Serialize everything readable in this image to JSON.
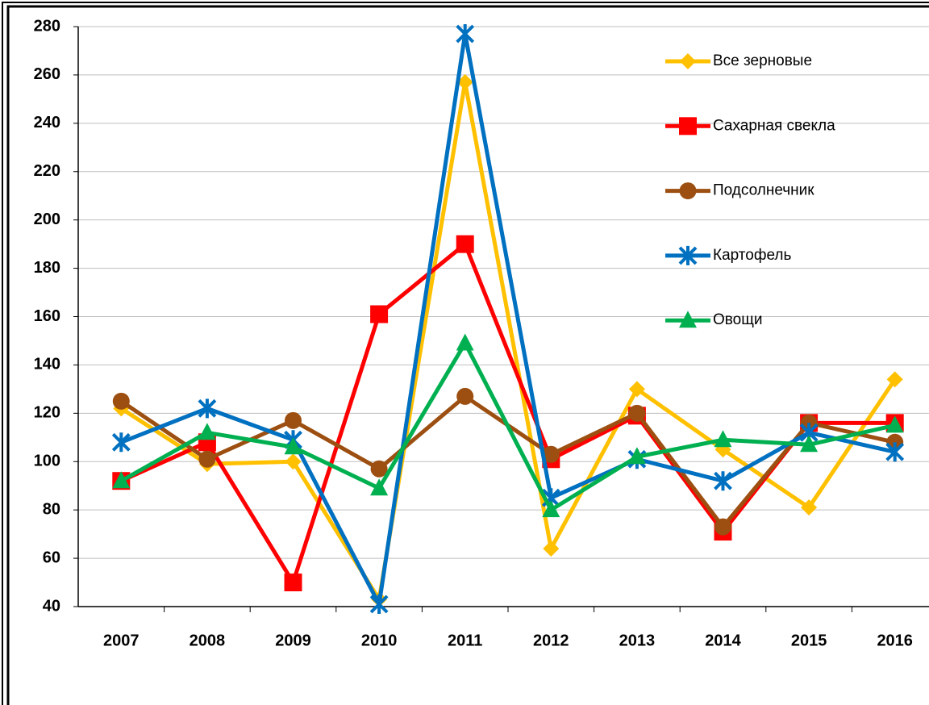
{
  "chart_data": {
    "type": "line",
    "categories": [
      "2007",
      "2008",
      "2009",
      "2010",
      "2011",
      "2012",
      "2013",
      "2014",
      "2015",
      "2016"
    ],
    "series": [
      {
        "name": "Все зерновые",
        "color": "#FFC000",
        "marker": "diamond",
        "values": [
          122,
          99,
          100,
          43,
          257,
          64,
          130,
          105,
          81,
          134
        ]
      },
      {
        "name": "Сахарная свекла",
        "color": "#FF0000",
        "marker": "square",
        "values": [
          92,
          108,
          50,
          161,
          190,
          101,
          119,
          71,
          116,
          116
        ]
      },
      {
        "name": "Подсолнечник",
        "color": "#9C4F10",
        "marker": "circle",
        "values": [
          125,
          101,
          117,
          97,
          127,
          103,
          120,
          73,
          116,
          108
        ]
      },
      {
        "name": "Картофель",
        "color": "#0070C0",
        "marker": "star",
        "values": [
          108,
          122,
          109,
          41,
          277,
          85,
          101,
          92,
          112,
          104
        ]
      },
      {
        "name": "Овощи",
        "color": "#00B050",
        "marker": "triangle",
        "values": [
          92,
          112,
          106,
          89,
          149,
          80,
          102,
          109,
          107,
          115
        ]
      }
    ],
    "ylim": [
      40,
      280
    ],
    "yticks": [
      40,
      60,
      80,
      100,
      120,
      140,
      160,
      180,
      200,
      220,
      240,
      260,
      280
    ],
    "grid": true,
    "legend": "top-right"
  }
}
